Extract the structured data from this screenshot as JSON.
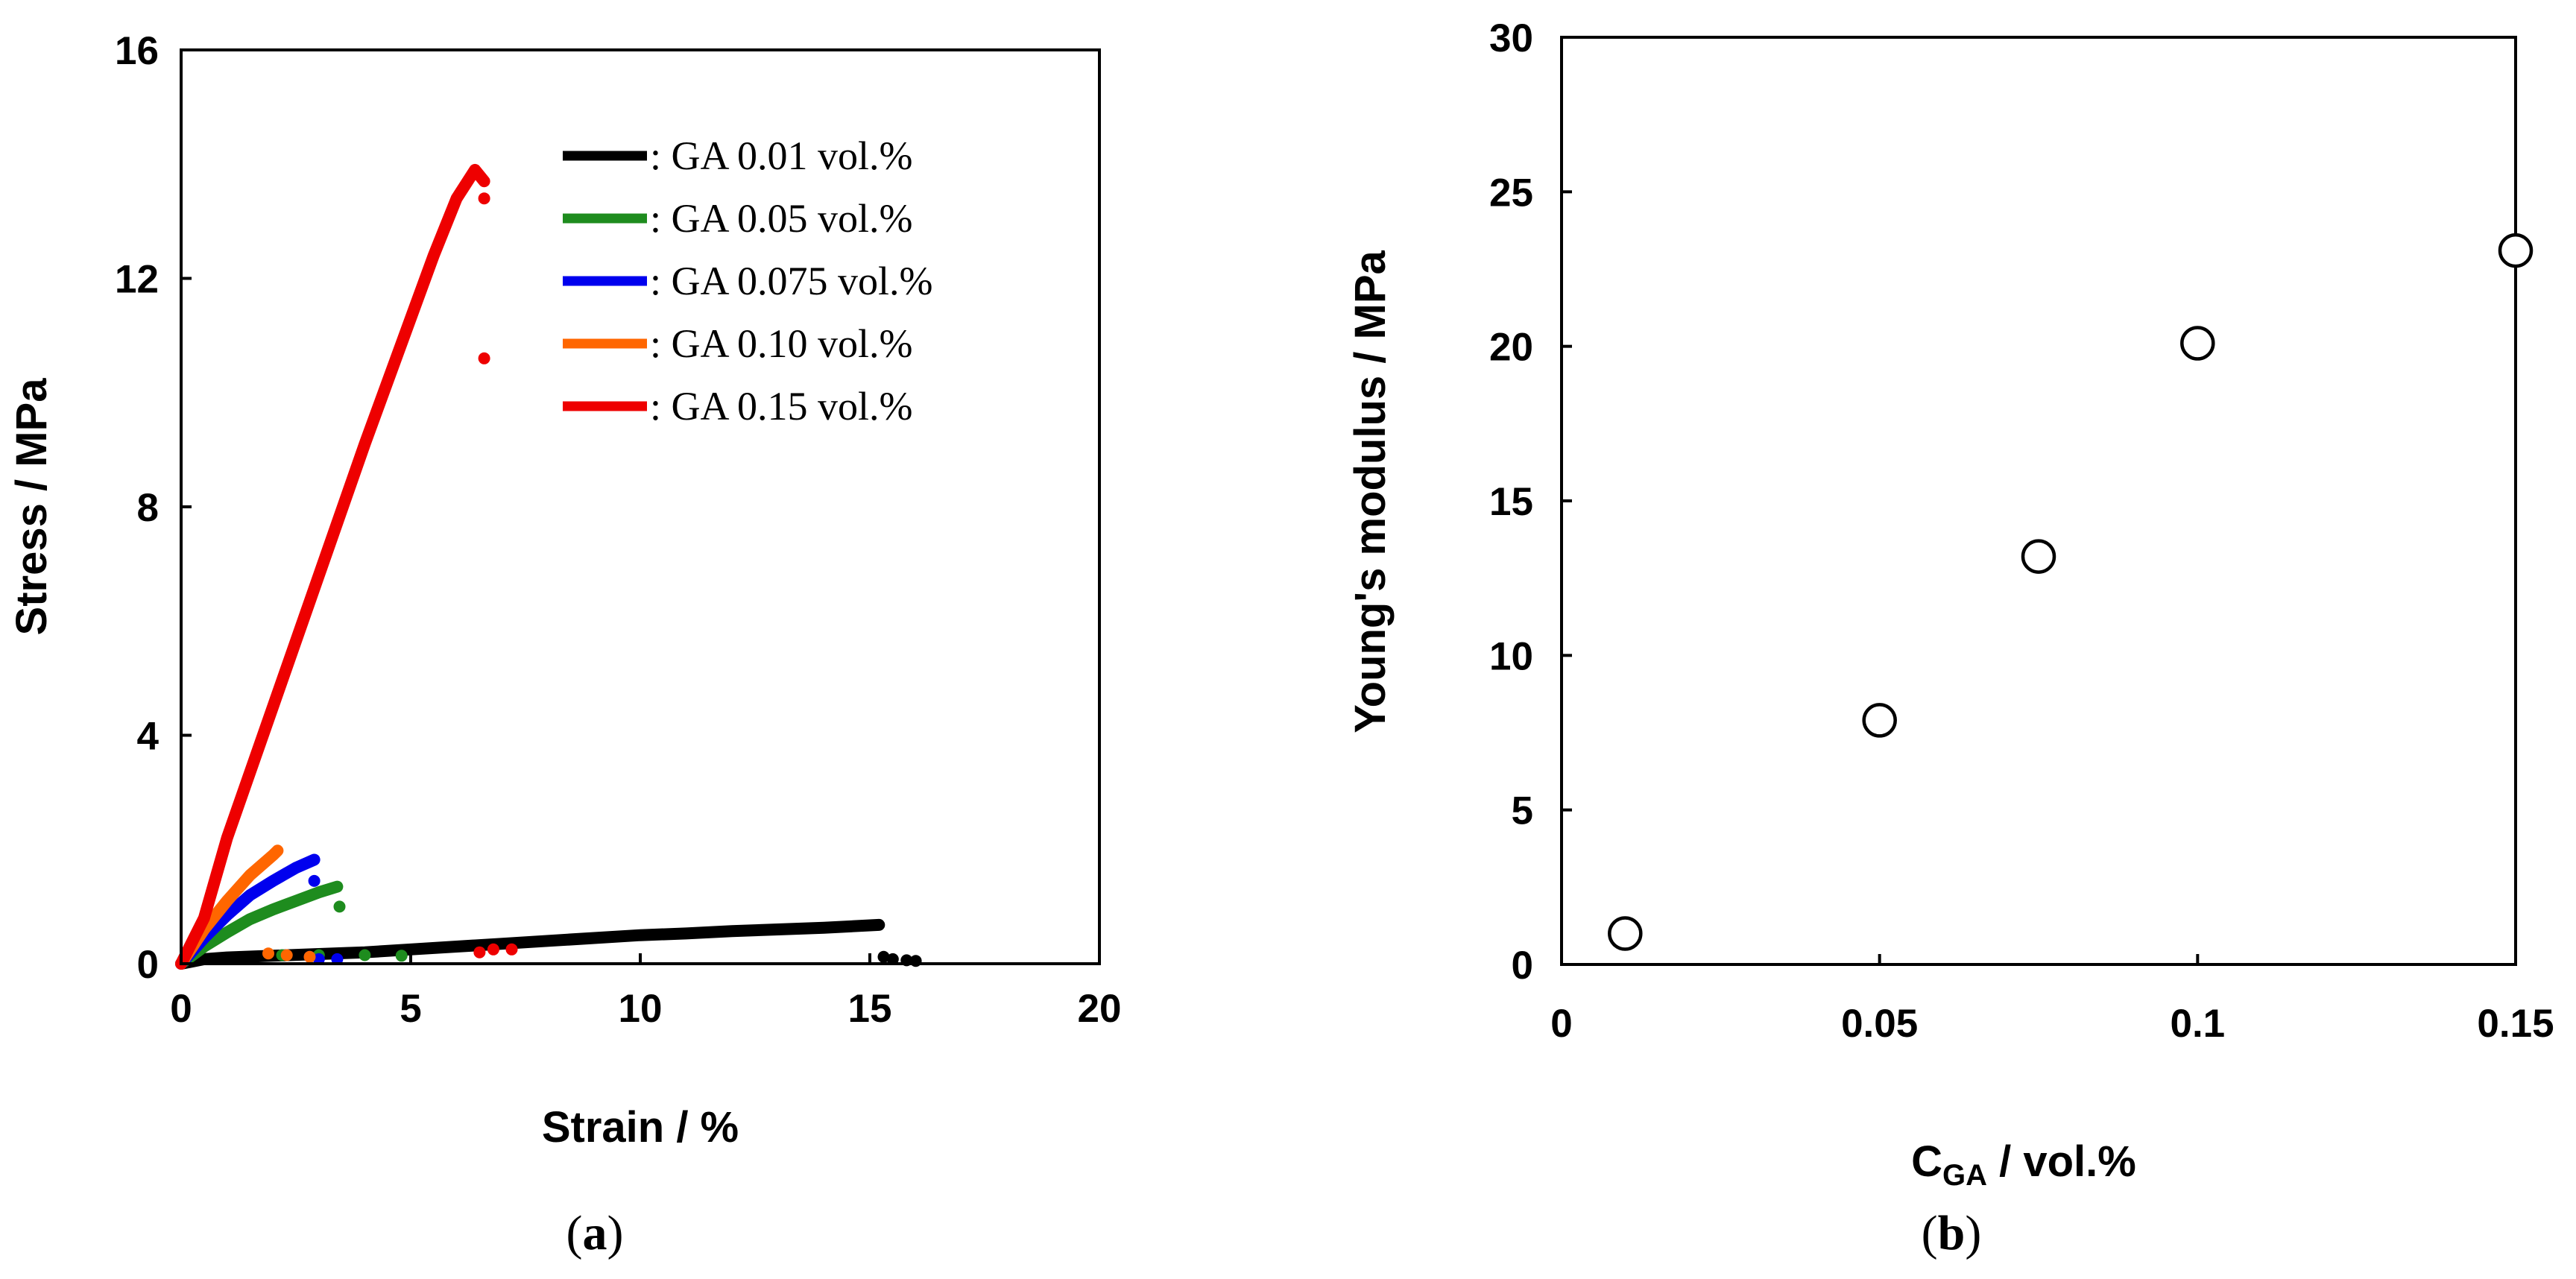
{
  "chart_data": [
    {
      "type": "line",
      "panel_label_prefix": "(",
      "panel_label_letter": "a",
      "panel_label_suffix": ")",
      "xlabel": "Strain / %",
      "ylabel": "Stress / MPa",
      "xlim": [
        0,
        20
      ],
      "ylim": [
        0,
        16
      ],
      "xticks": [
        "0",
        "5",
        "10",
        "15",
        "20"
      ],
      "yticks": [
        "0",
        "4",
        "8",
        "12",
        "16"
      ],
      "legend_position": "top-right",
      "series": [
        {
          "name": ": GA 0.01 vol.%",
          "color": "#000000",
          "curve": [
            [
              0,
              0
            ],
            [
              0.5,
              0.08
            ],
            [
              1,
              0.11
            ],
            [
              2,
              0.14
            ],
            [
              3,
              0.17
            ],
            [
              4,
              0.2
            ],
            [
              5,
              0.25
            ],
            [
              6,
              0.3
            ],
            [
              7,
              0.35
            ],
            [
              8,
              0.4
            ],
            [
              9,
              0.45
            ],
            [
              10,
              0.5
            ],
            [
              11,
              0.53
            ],
            [
              12,
              0.57
            ],
            [
              13,
              0.6
            ],
            [
              14,
              0.63
            ],
            [
              15.2,
              0.68
            ]
          ],
          "after_break": [
            [
              15.3,
              0.12
            ],
            [
              15.5,
              0.08
            ],
            [
              15.8,
              0.06
            ],
            [
              16.0,
              0.05
            ]
          ]
        },
        {
          "name": ": GA 0.05 vol.%",
          "color": "#1e8c1e",
          "curve": [
            [
              0,
              0
            ],
            [
              0.5,
              0.3
            ],
            [
              1,
              0.55
            ],
            [
              1.5,
              0.78
            ],
            [
              2,
              0.95
            ],
            [
              2.5,
              1.1
            ],
            [
              3,
              1.25
            ],
            [
              3.4,
              1.35
            ]
          ],
          "after_break": [
            [
              3.45,
              1.0
            ],
            [
              2.2,
              0.15
            ],
            [
              3,
              0.15
            ],
            [
              4,
              0.15
            ],
            [
              4.8,
              0.14
            ]
          ]
        },
        {
          "name": ": GA 0.075 vol.%",
          "color": "#0000ee",
          "curve": [
            [
              0,
              0
            ],
            [
              0.5,
              0.45
            ],
            [
              1,
              0.85
            ],
            [
              1.5,
              1.2
            ],
            [
              2,
              1.45
            ],
            [
              2.5,
              1.68
            ],
            [
              2.9,
              1.82
            ]
          ],
          "after_break": [
            [
              2.9,
              1.45
            ],
            [
              2.8,
              0.12
            ],
            [
              3.0,
              0.08
            ],
            [
              3.4,
              0.08
            ]
          ]
        },
        {
          "name": ": GA 0.10 vol.%",
          "color": "#ff6600",
          "curve": [
            [
              0,
              0
            ],
            [
              0.5,
              0.6
            ],
            [
              1,
              1.1
            ],
            [
              1.5,
              1.55
            ],
            [
              2,
              1.9
            ],
            [
              2.1,
              1.98
            ]
          ],
          "after_break": [
            [
              1.9,
              0.18
            ],
            [
              2.3,
              0.15
            ],
            [
              2.8,
              0.12
            ]
          ]
        },
        {
          "name": ": GA 0.15 vol.%",
          "color": "#ee0000",
          "curve": [
            [
              0,
              0
            ],
            [
              0.5,
              0.8
            ],
            [
              1,
              2.2
            ],
            [
              2,
              4.5
            ],
            [
              3,
              6.8
            ],
            [
              4,
              9.1
            ],
            [
              5,
              11.3
            ],
            [
              5.5,
              12.4
            ],
            [
              6,
              13.4
            ],
            [
              6.4,
              13.9
            ],
            [
              6.6,
              13.7
            ]
          ],
          "after_break": [
            [
              6.6,
              13.4
            ],
            [
              6.6,
              10.6
            ],
            [
              6.5,
              0.2
            ],
            [
              6.8,
              0.25
            ],
            [
              7.2,
              0.25
            ]
          ]
        }
      ]
    },
    {
      "type": "scatter",
      "panel_label_prefix": "(",
      "panel_label_letter": "b",
      "panel_label_suffix": ")",
      "xlabel_main": "C",
      "xlabel_sub": "GA",
      "xlabel_rest": " / vol.%",
      "ylabel": "Young's modulus / MPa",
      "xlim": [
        0,
        0.15
      ],
      "ylim": [
        0,
        30
      ],
      "xticks": [
        "0",
        "0.05",
        "0.1",
        "0.15"
      ],
      "yticks": [
        "0",
        "5",
        "10",
        "15",
        "20",
        "25",
        "30"
      ],
      "x": [
        0.01,
        0.05,
        0.075,
        0.1,
        0.15
      ],
      "y": [
        1.0,
        7.9,
        13.2,
        20.1,
        23.1
      ]
    }
  ]
}
